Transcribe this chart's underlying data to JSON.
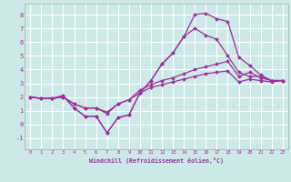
{
  "xlabel": "Windchill (Refroidissement éolien,°C)",
  "background_color": "#cce8e8",
  "grid_color": "#ffffff",
  "line_color": "#993399",
  "x_ticks": [
    0,
    1,
    2,
    3,
    4,
    5,
    6,
    7,
    8,
    9,
    10,
    11,
    12,
    13,
    14,
    15,
    16,
    17,
    18,
    19,
    20,
    21,
    22,
    23
  ],
  "y_ticks": [
    -1,
    0,
    1,
    2,
    3,
    4,
    5,
    6,
    7,
    8
  ],
  "ylim": [
    -1.8,
    8.8
  ],
  "xlim": [
    -0.5,
    23.5
  ],
  "line1_x": [
    0,
    1,
    2,
    3,
    4,
    5,
    6,
    7,
    8,
    9,
    10,
    11,
    12,
    13,
    14,
    15,
    16,
    17,
    18,
    19,
    20,
    21,
    22,
    23
  ],
  "line1_y": [
    2.0,
    1.9,
    1.9,
    2.1,
    1.2,
    0.6,
    0.6,
    -0.6,
    0.5,
    0.7,
    2.3,
    3.2,
    4.4,
    5.2,
    6.4,
    8.0,
    8.1,
    7.7,
    7.5,
    4.9,
    4.3,
    3.6,
    3.2,
    3.2
  ],
  "line2_x": [
    0,
    1,
    2,
    3,
    4,
    5,
    6,
    7,
    8,
    9,
    10,
    11,
    12,
    13,
    14,
    15,
    16,
    17,
    18,
    19,
    20,
    21,
    22,
    23
  ],
  "line2_y": [
    2.0,
    1.9,
    1.9,
    2.1,
    1.2,
    0.6,
    0.6,
    -0.6,
    0.5,
    0.7,
    2.3,
    3.2,
    4.4,
    5.2,
    6.4,
    7.0,
    6.5,
    6.2,
    5.0,
    3.8,
    3.5,
    3.5,
    3.2,
    3.2
  ],
  "line3_x": [
    0,
    1,
    2,
    3,
    4,
    5,
    6,
    7,
    8,
    9,
    10,
    11,
    12,
    13,
    14,
    15,
    16,
    17,
    18,
    19,
    20,
    21,
    22,
    23
  ],
  "line3_y": [
    2.0,
    1.9,
    1.9,
    2.0,
    1.5,
    1.2,
    1.2,
    0.8,
    1.5,
    1.8,
    2.5,
    2.9,
    3.2,
    3.4,
    3.7,
    4.0,
    4.2,
    4.4,
    4.6,
    3.5,
    3.8,
    3.4,
    3.2,
    3.2
  ],
  "line4_x": [
    0,
    1,
    2,
    3,
    4,
    5,
    6,
    7,
    8,
    9,
    10,
    11,
    12,
    13,
    14,
    15,
    16,
    17,
    18,
    19,
    20,
    21,
    22,
    23
  ],
  "line4_y": [
    2.0,
    1.9,
    1.9,
    2.0,
    1.5,
    1.2,
    1.2,
    0.9,
    1.5,
    1.8,
    2.3,
    2.7,
    2.9,
    3.1,
    3.3,
    3.5,
    3.7,
    3.8,
    3.9,
    3.1,
    3.3,
    3.2,
    3.1,
    3.2
  ]
}
